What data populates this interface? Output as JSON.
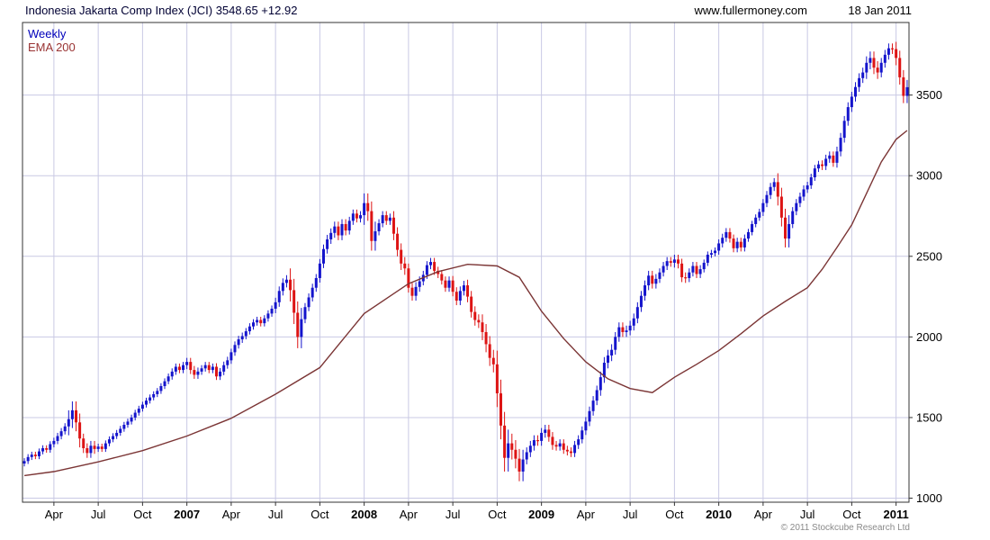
{
  "header": {
    "title": "Indonesia Jakarta Comp Index (JCI) 3548.65 +12.92",
    "website": "www.fullermoney.com",
    "date": "18 Jan 2011"
  },
  "legend": {
    "weekly": "Weekly",
    "ema": "EMA 200"
  },
  "footer": {
    "copyright": "© 2011 Stockcube Research Ltd"
  },
  "colors": {
    "up": "#1414cc",
    "down": "#dd1414",
    "ema": "#7b3535",
    "grid": "#c9c9e4",
    "border": "#333333",
    "axis_text": "#000000",
    "legend_weekly": "#0000bb",
    "legend_ema": "#993333"
  },
  "chart_data": {
    "type": "candlestick",
    "title": "Indonesia Jakarta Comp Index (JCI)",
    "timeframe": "Weekly",
    "overlay": "EMA 200",
    "last_price": 3548.65,
    "change": "+12.92",
    "as_of": "18 Jan 2011",
    "ylim": [
      975,
      3950
    ],
    "yticks": [
      1000,
      1500,
      2000,
      2500,
      3000,
      3500
    ],
    "xticks": [
      {
        "i": 8,
        "label": "Apr"
      },
      {
        "i": 20,
        "label": "Jul"
      },
      {
        "i": 32,
        "label": "Oct"
      },
      {
        "i": 44,
        "label": "2007"
      },
      {
        "i": 56,
        "label": "Apr"
      },
      {
        "i": 68,
        "label": "Jul"
      },
      {
        "i": 80,
        "label": "Oct"
      },
      {
        "i": 92,
        "label": "2008"
      },
      {
        "i": 104,
        "label": "Apr"
      },
      {
        "i": 116,
        "label": "Jul"
      },
      {
        "i": 128,
        "label": "Oct"
      },
      {
        "i": 140,
        "label": "2009"
      },
      {
        "i": 152,
        "label": "Apr"
      },
      {
        "i": 164,
        "label": "Jul"
      },
      {
        "i": 176,
        "label": "Oct"
      },
      {
        "i": 188,
        "label": "2010"
      },
      {
        "i": 200,
        "label": "Apr"
      },
      {
        "i": 212,
        "label": "Jul"
      },
      {
        "i": 224,
        "label": "Oct"
      },
      {
        "i": 236,
        "label": "2011"
      }
    ],
    "first_open": 1215,
    "weekly_closes": [
      1230,
      1255,
      1270,
      1260,
      1290,
      1310,
      1300,
      1335,
      1355,
      1385,
      1415,
      1445,
      1490,
      1545,
      1470,
      1370,
      1310,
      1280,
      1325,
      1305,
      1320,
      1305,
      1340,
      1365,
      1385,
      1405,
      1430,
      1455,
      1475,
      1500,
      1530,
      1555,
      1580,
      1605,
      1625,
      1645,
      1665,
      1695,
      1725,
      1755,
      1785,
      1815,
      1795,
      1825,
      1845,
      1795,
      1765,
      1785,
      1805,
      1825,
      1795,
      1815,
      1755,
      1785,
      1825,
      1855,
      1905,
      1950,
      1985,
      2005,
      2035,
      2065,
      2090,
      2105,
      2085,
      2115,
      2145,
      2175,
      2215,
      2285,
      2335,
      2355,
      2290,
      2150,
      2000,
      2110,
      2185,
      2245,
      2305,
      2365,
      2455,
      2545,
      2605,
      2645,
      2685,
      2630,
      2700,
      2660,
      2720,
      2765,
      2735,
      2755,
      2830,
      2780,
      2595,
      2655,
      2705,
      2755,
      2720,
      2740,
      2640,
      2540,
      2455,
      2425,
      2305,
      2255,
      2310,
      2345,
      2385,
      2445,
      2465,
      2410,
      2390,
      2350,
      2305,
      2350,
      2280,
      2225,
      2285,
      2320,
      2250,
      2155,
      2105,
      2090,
      2030,
      1955,
      1870,
      1830,
      1650,
      1450,
      1250,
      1340,
      1300,
      1245,
      1165,
      1240,
      1285,
      1325,
      1360,
      1355,
      1405,
      1425,
      1380,
      1330,
      1320,
      1340,
      1300,
      1290,
      1280,
      1330,
      1365,
      1420,
      1475,
      1540,
      1605,
      1670,
      1750,
      1840,
      1885,
      1920,
      2000,
      2060,
      2030,
      2040,
      2070,
      2115,
      2185,
      2255,
      2320,
      2380,
      2330,
      2360,
      2400,
      2440,
      2470,
      2460,
      2480,
      2455,
      2370,
      2365,
      2400,
      2440,
      2390,
      2420,
      2460,
      2510,
      2520,
      2535,
      2580,
      2615,
      2650,
      2610,
      2550,
      2590,
      2555,
      2610,
      2650,
      2700,
      2740,
      2775,
      2830,
      2880,
      2930,
      2960,
      2870,
      2740,
      2610,
      2700,
      2780,
      2830,
      2870,
      2915,
      2940,
      2990,
      3045,
      3070,
      3060,
      3105,
      3125,
      3080,
      3150,
      3235,
      3340,
      3425,
      3490,
      3550,
      3605,
      3640,
      3700,
      3730,
      3670,
      3640,
      3700,
      3750,
      3790,
      3785,
      3730,
      3610,
      3495,
      3548.65
    ],
    "wick_by_month": [
      18,
      18,
      20,
      55,
      30,
      18,
      18,
      18,
      18,
      18,
      20,
      25,
      20,
      22,
      22,
      20,
      20,
      28,
      70,
      25,
      28,
      30,
      25,
      60,
      25,
      40,
      30,
      25,
      25,
      28,
      35,
      50,
      85,
      60,
      30,
      30,
      25,
      25,
      28,
      35,
      30,
      30,
      30,
      25,
      30,
      25,
      20,
      25,
      25,
      20,
      25,
      55,
      25,
      22,
      25,
      30,
      30,
      40,
      30,
      45
    ],
    "ema_points": [
      [
        0,
        1140
      ],
      [
        8,
        1165
      ],
      [
        20,
        1225
      ],
      [
        32,
        1295
      ],
      [
        44,
        1385
      ],
      [
        56,
        1495
      ],
      [
        68,
        1645
      ],
      [
        80,
        1810
      ],
      [
        92,
        2145
      ],
      [
        104,
        2330
      ],
      [
        112,
        2405
      ],
      [
        120,
        2450
      ],
      [
        128,
        2440
      ],
      [
        134,
        2370
      ],
      [
        140,
        2160
      ],
      [
        146,
        1990
      ],
      [
        152,
        1845
      ],
      [
        158,
        1740
      ],
      [
        164,
        1680
      ],
      [
        170,
        1655
      ],
      [
        176,
        1750
      ],
      [
        182,
        1830
      ],
      [
        188,
        1915
      ],
      [
        194,
        2020
      ],
      [
        200,
        2130
      ],
      [
        206,
        2220
      ],
      [
        212,
        2305
      ],
      [
        216,
        2420
      ],
      [
        220,
        2555
      ],
      [
        224,
        2695
      ],
      [
        228,
        2890
      ],
      [
        232,
        3085
      ],
      [
        236,
        3225
      ],
      [
        239,
        3280
      ]
    ]
  }
}
